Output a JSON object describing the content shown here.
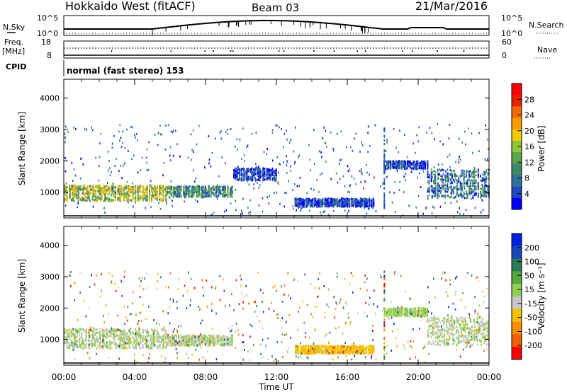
{
  "header": {
    "radar": "Hokkaido West (fitACF)",
    "beam": "Beam 03",
    "date": "21/Mar/2016"
  },
  "noise_panel": {
    "left_label": "N.Sky",
    "right_label": "N.Search",
    "left_ticks": [
      "10^5",
      "10^0"
    ],
    "right_ticks": [
      "10^5",
      "10^0"
    ]
  },
  "freq_panel": {
    "left_label_1": "Freq.",
    "left_label_2": "[MHz]",
    "right_label": "Nave",
    "left_ticks": [
      "18",
      "8"
    ],
    "right_ticks": [
      "60",
      "0"
    ]
  },
  "cpid_panel": {
    "label": "CPID",
    "text": "normal (fast stereo) 153"
  },
  "colors": {
    "power": [
      "#0000ff",
      "#1f49c0",
      "#2f6f9a",
      "#3c8a6a",
      "#5aa64a",
      "#8cc63a",
      "#f5c800",
      "#f59a00",
      "#f06a00",
      "#e82000",
      "#ff0000"
    ],
    "velocity": [
      "#0020e0",
      "#1848b8",
      "#2a7a58",
      "#5aa640",
      "#90d050",
      "#c8c8c8",
      "#f5c000",
      "#f59000",
      "#f06000",
      "#ff0000"
    ]
  },
  "chart_data": [
    {
      "type": "heatmap",
      "name": "power",
      "ylabel": "Slant Range [km]",
      "xlim": [
        "00:00",
        "00:00"
      ],
      "ylim": [
        180,
        4600
      ],
      "yticks": [
        "4000",
        "3000",
        "2000",
        "1000"
      ],
      "colorbar_label": "Power [dB]",
      "colorbar_ticks": [
        "28",
        "24",
        "20",
        "16",
        "12",
        "8",
        "4"
      ],
      "colorbar_range": [
        0,
        32
      ],
      "bands": [
        {
          "t_start": 0.0,
          "t_end": 5.8,
          "range_center": 1000,
          "range_width": 380,
          "level": 16
        },
        {
          "t_start": 5.8,
          "t_end": 9.5,
          "range_center": 1050,
          "range_width": 260,
          "level": 10
        },
        {
          "t_start": 9.5,
          "t_end": 12.0,
          "range_center": 1600,
          "range_width": 300,
          "level": 4
        },
        {
          "t_start": 13.0,
          "t_end": 17.5,
          "range_center": 700,
          "range_width": 200,
          "level": 4
        },
        {
          "t_start": 18.0,
          "t_end": 20.5,
          "range_center": 1900,
          "range_width": 200,
          "level": 4
        },
        {
          "t_start": 20.5,
          "t_end": 24.0,
          "range_center": 1300,
          "range_width": 700,
          "level": 8
        }
      ]
    },
    {
      "type": "heatmap",
      "name": "velocity",
      "xlabel": "Time UT",
      "ylabel": "Slant Range [km]",
      "xticks": [
        "00:00",
        "04:00",
        "08:00",
        "12:00",
        "16:00",
        "20:00",
        "00:00"
      ],
      "xlim": [
        "00:00",
        "00:00"
      ],
      "ylim": [
        180,
        4600
      ],
      "yticks": [
        "4000",
        "3000",
        "2000",
        "1000"
      ],
      "colorbar_label": "Velocity [m s⁻¹]",
      "colorbar_ticks": [
        "200",
        "100",
        "50",
        "15",
        "-15",
        "-50",
        "-100",
        "-200"
      ],
      "colorbar_range": [
        -250,
        250
      ],
      "bands": [
        {
          "t_start": 0.0,
          "t_end": 5.8,
          "range_center": 1050,
          "range_width": 480,
          "level": 0
        },
        {
          "t_start": 5.8,
          "t_end": 9.5,
          "range_center": 1000,
          "range_width": 260,
          "level": 0
        },
        {
          "t_start": 13.0,
          "t_end": 17.5,
          "range_center": 700,
          "range_width": 200,
          "level": -80
        },
        {
          "t_start": 18.0,
          "t_end": 20.5,
          "range_center": 1900,
          "range_width": 200,
          "level": 20
        },
        {
          "t_start": 20.5,
          "t_end": 24.0,
          "range_center": 1300,
          "range_width": 700,
          "level": 0
        }
      ]
    }
  ]
}
